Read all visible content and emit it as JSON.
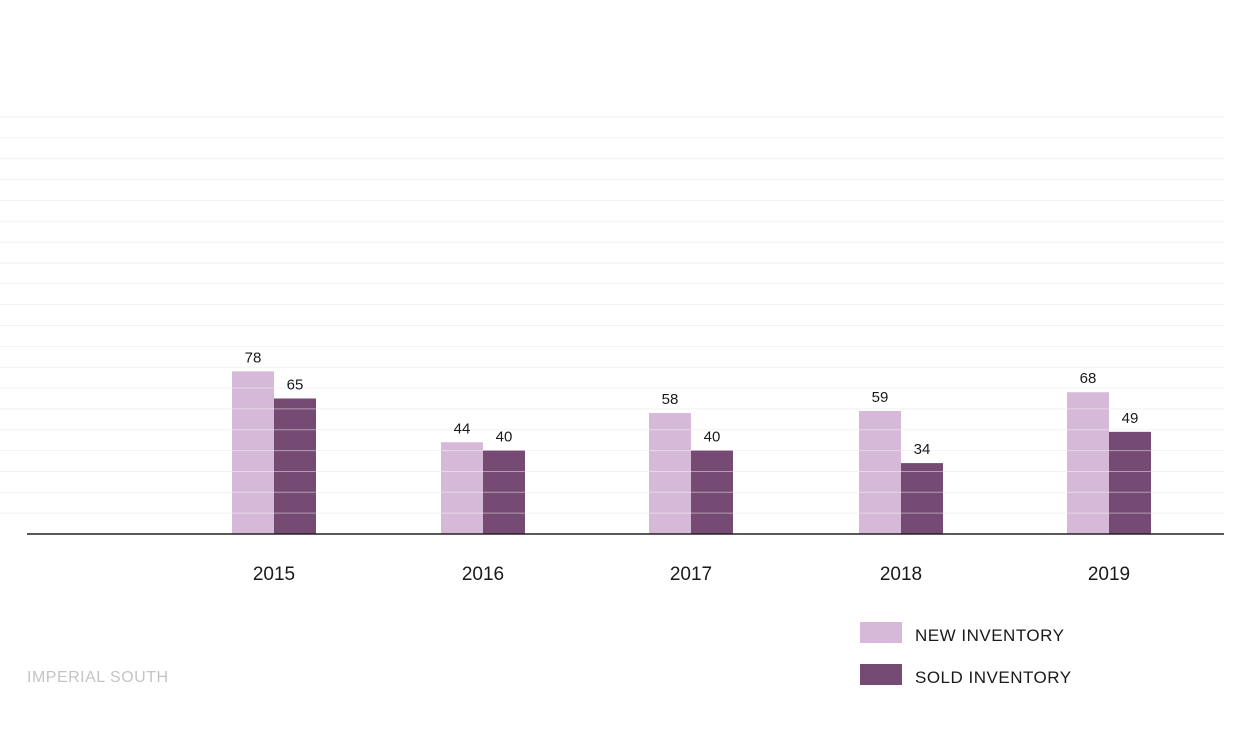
{
  "chart_data": {
    "type": "bar",
    "title": "",
    "xlabel": "",
    "ylabel": "",
    "categories": [
      "2015",
      "2016",
      "2017",
      "2018",
      "2019"
    ],
    "series": [
      {
        "name": "NEW INVENTORY",
        "values": [
          78,
          44,
          58,
          59,
          68
        ],
        "color": "#d6b8d8"
      },
      {
        "name": "SOLD INVENTORY",
        "values": [
          65,
          40,
          40,
          34,
          49
        ],
        "color": "#764b73"
      }
    ],
    "ylim": [
      0,
      200
    ],
    "grid": true,
    "gridline_step": 10,
    "legend_position": "bottom-right"
  },
  "colors": {
    "new_inventory": "#d6b8d8",
    "sold_inventory": "#764b73",
    "axis": "#222222",
    "grid": "#f2f2f2"
  },
  "watermark": "IMPERIAL SOUTH"
}
